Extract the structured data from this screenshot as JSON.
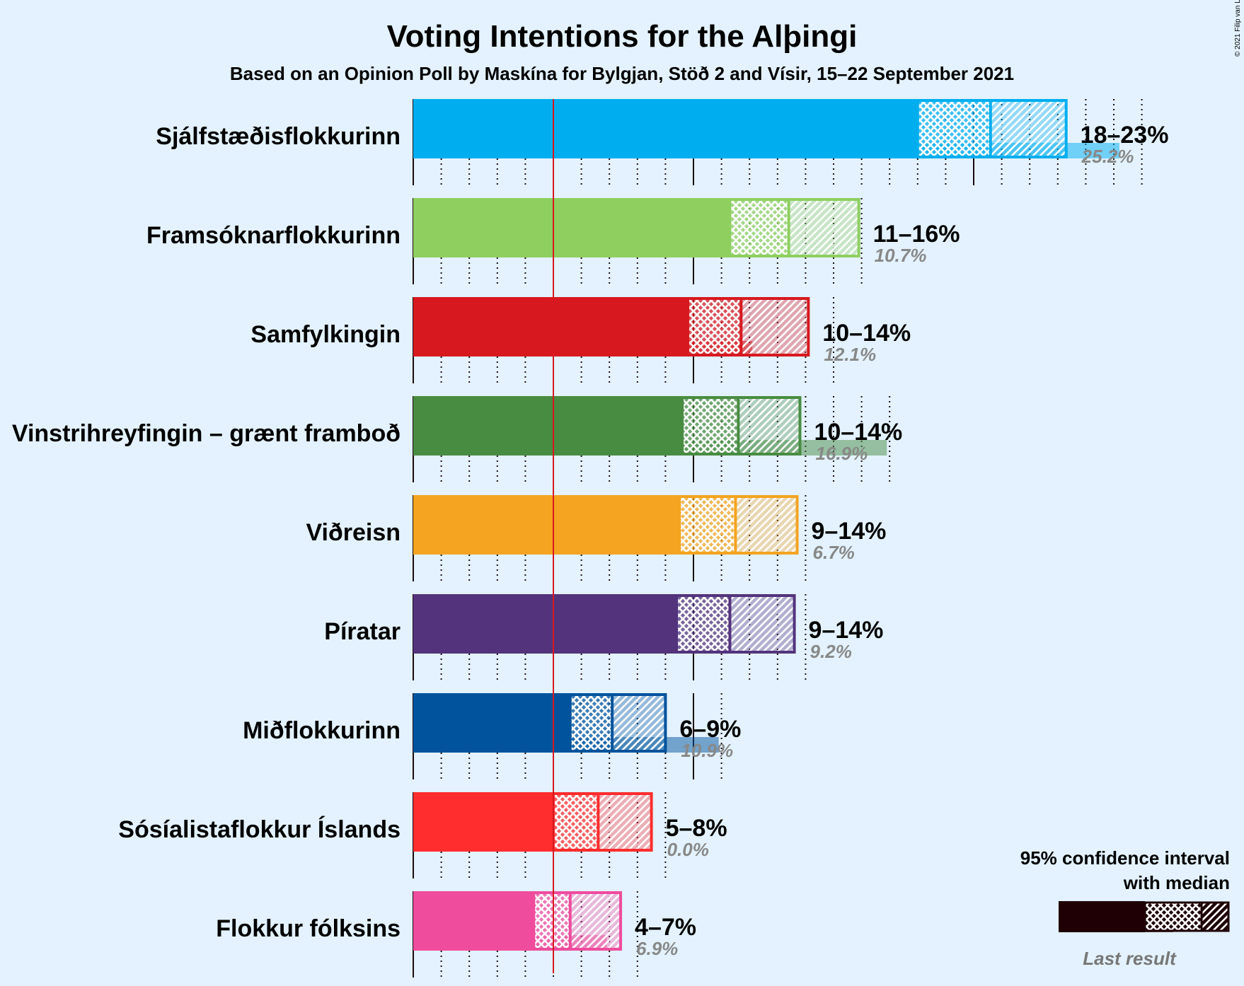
{
  "title": "Voting Intentions for the Alþingi",
  "subtitle": "Based on an Opinion Poll by Maskína for Bylgjan, Stöð 2 and Vísir, 15–22 September 2021",
  "copyright": "© 2021 Filip van Laenen",
  "legend": {
    "line1": "95% confidence interval",
    "line2": "with median",
    "last_result": "Last result"
  },
  "chart_data": {
    "type": "bar",
    "orientation": "horizontal",
    "x_unit": "%",
    "threshold": 5,
    "categories": [
      "Sjálfstæðisflokkurinn",
      "Framsóknarflokkurinn",
      "Samfylkingin",
      "Vinstrihreyfingin – grænt framboð",
      "Viðreisn",
      "Píratar",
      "Miðflokkurinn",
      "Sósíalistaflokkur Íslands",
      "Flokkur fólksins"
    ],
    "series": [
      {
        "colors": [
          "#00aeef",
          "#8ecf5f",
          "#d7191f",
          "#488c41",
          "#f4a420",
          "#53337c",
          "#00539c",
          "#ff2d2d",
          "#ef4c9d"
        ],
        "ci_low": [
          18.0,
          11.3,
          9.8,
          9.6,
          9.5,
          9.4,
          5.6,
          5.0,
          4.3
        ],
        "median": [
          20.6,
          13.4,
          11.7,
          11.6,
          11.5,
          11.3,
          7.1,
          6.6,
          5.6
        ],
        "ci_high": [
          23.3,
          15.9,
          14.1,
          13.8,
          13.7,
          13.6,
          9.0,
          8.5,
          7.4
        ],
        "range_labels": [
          "18–23%",
          "11–16%",
          "10–14%",
          "10–14%",
          "9–14%",
          "9–14%",
          "6–9%",
          "5–8%",
          "4–7%"
        ],
        "last_result": [
          25.2,
          10.7,
          12.1,
          16.9,
          6.7,
          9.2,
          10.9,
          0.0,
          6.9
        ],
        "last_labels": [
          "25.2%",
          "10.7%",
          "12.1%",
          "16.9%",
          "6.7%",
          "9.2%",
          "10.9%",
          "0.0%",
          "6.9%"
        ]
      }
    ]
  }
}
